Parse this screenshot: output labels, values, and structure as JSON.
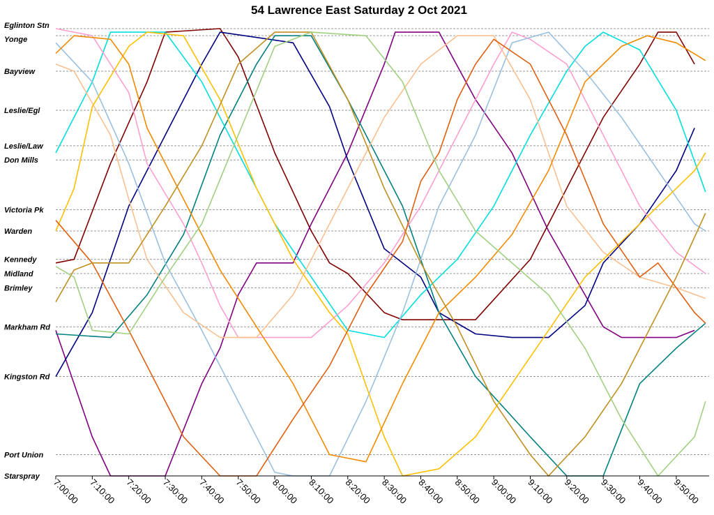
{
  "chart_data": {
    "type": "line",
    "title": "54 Lawrence East Saturday 2 Oct 2021",
    "xlabel": "",
    "ylabel": "",
    "x_unit": "time of day",
    "xlim": [
      "7:00:00",
      "9:59:00"
    ],
    "x_ticks": [
      "7:00:00",
      "7:10:00",
      "7:20:00",
      "7:30:00",
      "7:40:00",
      "7:50:00",
      "8:00:00",
      "8:10:00",
      "8:20:00",
      "8:30:00",
      "8:40:00",
      "8:50:00",
      "9:00:00",
      "9:10:00",
      "9:20:00",
      "9:30:00",
      "9:40:00",
      "9:50:00"
    ],
    "grid": "horizontal dashed lines at each stop",
    "stops": [
      {
        "name": "Eglinton Stn",
        "km": 0.0
      },
      {
        "name": "Yonge",
        "km": 0.2
      },
      {
        "name": "Bayview",
        "km": 1.2
      },
      {
        "name": "Leslie/Egl",
        "km": 2.3
      },
      {
        "name": "Leslie/Law",
        "km": 3.3
      },
      {
        "name": "Don Mills",
        "km": 3.7
      },
      {
        "name": "Victoria Pk",
        "km": 5.1
      },
      {
        "name": "Warden",
        "km": 5.7
      },
      {
        "name": "Kennedy",
        "km": 6.5
      },
      {
        "name": "Midland",
        "km": 6.9
      },
      {
        "name": "Brimley",
        "km": 7.3
      },
      {
        "name": "Markham Rd",
        "km": 8.4
      },
      {
        "name": "Kingston Rd",
        "km": 9.8
      },
      {
        "name": "Port Union",
        "km": 12.0
      },
      {
        "name": "Starspray",
        "km": 12.6
      }
    ],
    "ylim": [
      0,
      12.6
    ],
    "series": [
      {
        "color": "#800000",
        "points": [
          [
            "7:00",
            6.6
          ],
          [
            "7:05",
            6.5
          ],
          [
            "7:15",
            3.8
          ],
          [
            "7:25",
            1.5
          ],
          [
            "7:30",
            0.1
          ],
          [
            "7:45",
            0.0
          ],
          [
            "7:50",
            0.8
          ],
          [
            "8:00",
            3.5
          ],
          [
            "8:10",
            5.7
          ],
          [
            "8:15",
            6.6
          ],
          [
            "8:20",
            6.9
          ],
          [
            "8:30",
            8.0
          ],
          [
            "8:35",
            8.2
          ],
          [
            "8:55",
            8.2
          ],
          [
            "9:10",
            6.5
          ],
          [
            "9:20",
            4.5
          ],
          [
            "9:30",
            2.5
          ],
          [
            "9:40",
            1.0
          ],
          [
            "9:45",
            0.1
          ],
          [
            "9:50",
            0.1
          ],
          [
            "9:55",
            1.0
          ]
        ]
      },
      {
        "color": "#800080",
        "points": [
          [
            "7:00",
            8.5
          ],
          [
            "7:10",
            11.5
          ],
          [
            "7:15",
            12.6
          ],
          [
            "7:30",
            12.6
          ],
          [
            "7:40",
            10.0
          ],
          [
            "7:45",
            9.0
          ],
          [
            "7:50",
            7.5
          ],
          [
            "7:55",
            6.6
          ],
          [
            "8:05",
            6.6
          ],
          [
            "8:10",
            5.5
          ],
          [
            "8:20",
            3.5
          ],
          [
            "8:30",
            1.0
          ],
          [
            "8:33",
            0.1
          ],
          [
            "8:45",
            0.1
          ],
          [
            "8:55",
            2.0
          ],
          [
            "9:05",
            3.5
          ],
          [
            "9:15",
            5.7
          ],
          [
            "9:25",
            7.5
          ],
          [
            "9:30",
            8.4
          ],
          [
            "9:35",
            8.7
          ],
          [
            "9:50",
            8.7
          ],
          [
            "9:55",
            8.5
          ]
        ]
      },
      {
        "color": "#000080",
        "points": [
          [
            "7:00",
            9.8
          ],
          [
            "7:10",
            8.0
          ],
          [
            "7:20",
            5.0
          ],
          [
            "7:30",
            3.0
          ],
          [
            "7:40",
            1.0
          ],
          [
            "7:45",
            0.1
          ],
          [
            "8:05",
            0.4
          ],
          [
            "8:15",
            2.2
          ],
          [
            "8:20",
            3.7
          ],
          [
            "8:30",
            6.2
          ],
          [
            "8:35",
            6.6
          ],
          [
            "8:40",
            7.0
          ],
          [
            "8:45",
            8.0
          ],
          [
            "8:55",
            8.6
          ],
          [
            "9:05",
            8.7
          ],
          [
            "9:15",
            8.7
          ],
          [
            "9:25",
            7.8
          ],
          [
            "9:30",
            6.6
          ],
          [
            "9:40",
            5.5
          ],
          [
            "9:50",
            4.0
          ],
          [
            "9:55",
            2.8
          ]
        ]
      },
      {
        "color": "#008080",
        "points": [
          [
            "7:00",
            8.6
          ],
          [
            "7:15",
            8.7
          ],
          [
            "7:25",
            7.5
          ],
          [
            "7:35",
            5.8
          ],
          [
            "7:45",
            3.0
          ],
          [
            "7:55",
            1.0
          ],
          [
            "8:00",
            0.2
          ],
          [
            "8:10",
            0.2
          ],
          [
            "8:20",
            2.0
          ],
          [
            "8:35",
            5.0
          ],
          [
            "8:45",
            8.0
          ],
          [
            "8:55",
            9.8
          ],
          [
            "9:10",
            11.5
          ],
          [
            "9:20",
            12.6
          ],
          [
            "9:30",
            12.6
          ],
          [
            "9:40",
            10.0
          ],
          [
            "9:50",
            9.0
          ],
          [
            "9:58",
            8.3
          ]
        ]
      },
      {
        "color": "#00dede",
        "points": [
          [
            "7:00",
            3.5
          ],
          [
            "7:10",
            1.5
          ],
          [
            "7:15",
            0.1
          ],
          [
            "7:30",
            0.1
          ],
          [
            "7:40",
            1.5
          ],
          [
            "7:50",
            3.5
          ],
          [
            "8:00",
            5.5
          ],
          [
            "8:10",
            7.0
          ],
          [
            "8:20",
            8.5
          ],
          [
            "8:30",
            8.7
          ],
          [
            "8:40",
            7.5
          ],
          [
            "8:50",
            6.5
          ],
          [
            "9:00",
            5.0
          ],
          [
            "9:10",
            3.0
          ],
          [
            "9:20",
            1.2
          ],
          [
            "9:25",
            0.5
          ],
          [
            "9:30",
            0.1
          ],
          [
            "9:40",
            0.6
          ],
          [
            "9:50",
            2.3
          ],
          [
            "9:58",
            4.6
          ]
        ]
      },
      {
        "color": "#ff9fd0",
        "points": [
          [
            "7:00",
            0.0
          ],
          [
            "7:10",
            0.2
          ],
          [
            "7:20",
            1.8
          ],
          [
            "7:25",
            3.8
          ],
          [
            "7:35",
            5.5
          ],
          [
            "7:40",
            6.6
          ],
          [
            "7:45",
            7.8
          ],
          [
            "7:50",
            8.7
          ],
          [
            "8:10",
            8.7
          ],
          [
            "8:20",
            7.8
          ],
          [
            "8:30",
            6.6
          ],
          [
            "8:40",
            5.0
          ],
          [
            "8:50",
            3.0
          ],
          [
            "9:00",
            1.0
          ],
          [
            "9:05",
            0.1
          ],
          [
            "9:10",
            0.3
          ],
          [
            "9:20",
            1.0
          ],
          [
            "9:30",
            3.0
          ],
          [
            "9:40",
            5.0
          ],
          [
            "9:50",
            6.3
          ],
          [
            "9:58",
            6.9
          ]
        ]
      },
      {
        "color": "#9ac0e0",
        "points": [
          [
            "7:00",
            0.4
          ],
          [
            "7:10",
            1.5
          ],
          [
            "7:20",
            3.8
          ],
          [
            "7:30",
            6.6
          ],
          [
            "7:40",
            8.5
          ],
          [
            "7:50",
            10.5
          ],
          [
            "8:00",
            12.5
          ],
          [
            "8:05",
            12.6
          ],
          [
            "8:15",
            12.6
          ],
          [
            "8:25",
            10.5
          ],
          [
            "8:35",
            8.0
          ],
          [
            "8:45",
            5.0
          ],
          [
            "8:55",
            3.0
          ],
          [
            "9:05",
            0.4
          ],
          [
            "9:15",
            0.1
          ],
          [
            "9:25",
            1.2
          ],
          [
            "9:35",
            2.5
          ],
          [
            "9:45",
            4.0
          ],
          [
            "9:55",
            5.5
          ],
          [
            "9:58",
            5.7
          ]
        ]
      },
      {
        "color": "#fac090",
        "points": [
          [
            "7:00",
            1.0
          ],
          [
            "7:05",
            1.2
          ],
          [
            "7:15",
            3.0
          ],
          [
            "7:20",
            4.8
          ],
          [
            "7:25",
            6.5
          ],
          [
            "7:35",
            8.0
          ],
          [
            "7:45",
            8.7
          ],
          [
            "7:55",
            8.7
          ],
          [
            "8:05",
            7.5
          ],
          [
            "8:20",
            4.5
          ],
          [
            "8:30",
            2.5
          ],
          [
            "8:40",
            1.0
          ],
          [
            "8:50",
            0.2
          ],
          [
            "9:00",
            0.2
          ],
          [
            "9:10",
            2.0
          ],
          [
            "9:15",
            3.5
          ],
          [
            "9:20",
            5.0
          ],
          [
            "9:30",
            6.3
          ],
          [
            "9:40",
            7.0
          ],
          [
            "9:50",
            7.3
          ],
          [
            "9:58",
            7.6
          ]
        ]
      },
      {
        "color": "#ffc000",
        "points": [
          [
            "7:00",
            5.7
          ],
          [
            "7:05",
            4.5
          ],
          [
            "7:10",
            2.2
          ],
          [
            "7:20",
            0.5
          ],
          [
            "7:25",
            0.1
          ],
          [
            "7:35",
            0.2
          ],
          [
            "7:45",
            2.0
          ],
          [
            "7:55",
            4.5
          ],
          [
            "8:05",
            6.5
          ],
          [
            "8:15",
            8.0
          ],
          [
            "8:20",
            8.6
          ],
          [
            "8:30",
            11.5
          ],
          [
            "8:35",
            12.6
          ],
          [
            "8:45",
            12.4
          ],
          [
            "8:55",
            11.5
          ],
          [
            "9:05",
            10.0
          ],
          [
            "9:15",
            8.5
          ],
          [
            "9:25",
            7.0
          ],
          [
            "9:35",
            6.0
          ],
          [
            "9:45",
            5.0
          ],
          [
            "9:55",
            4.0
          ],
          [
            "9:58",
            3.5
          ]
        ]
      },
      {
        "color": "#f28a00",
        "points": [
          [
            "7:00",
            0.7
          ],
          [
            "7:05",
            0.2
          ],
          [
            "7:15",
            0.3
          ],
          [
            "7:20",
            1.0
          ],
          [
            "7:25",
            2.8
          ],
          [
            "7:35",
            4.8
          ],
          [
            "7:45",
            6.8
          ],
          [
            "7:55",
            8.4
          ],
          [
            "8:05",
            10.0
          ],
          [
            "8:15",
            12.0
          ],
          [
            "8:25",
            12.2
          ],
          [
            "8:35",
            10.0
          ],
          [
            "8:45",
            8.0
          ],
          [
            "8:55",
            7.0
          ],
          [
            "9:05",
            5.8
          ],
          [
            "9:15",
            4.0
          ],
          [
            "9:25",
            1.5
          ],
          [
            "9:35",
            0.5
          ],
          [
            "9:42",
            0.2
          ],
          [
            "9:50",
            0.4
          ],
          [
            "9:58",
            0.9
          ]
        ]
      },
      {
        "color": "#e06010",
        "points": [
          [
            "7:00",
            5.4
          ],
          [
            "7:10",
            6.6
          ],
          [
            "7:20",
            8.5
          ],
          [
            "7:25",
            9.5
          ],
          [
            "7:35",
            11.5
          ],
          [
            "7:45",
            12.6
          ],
          [
            "7:55",
            12.6
          ],
          [
            "8:05",
            11.0
          ],
          [
            "8:15",
            9.5
          ],
          [
            "8:25",
            7.5
          ],
          [
            "8:35",
            6.0
          ],
          [
            "8:40",
            4.3
          ],
          [
            "8:45",
            3.5
          ],
          [
            "8:50",
            2.0
          ],
          [
            "8:55",
            1.0
          ],
          [
            "9:00",
            0.3
          ],
          [
            "9:10",
            1.0
          ],
          [
            "9:20",
            3.0
          ],
          [
            "9:30",
            5.5
          ],
          [
            "9:40",
            7.0
          ],
          [
            "9:45",
            6.6
          ],
          [
            "9:55",
            8.0
          ],
          [
            "9:58",
            8.3
          ]
        ]
      },
      {
        "color": "#c09020",
        "points": [
          [
            "7:00",
            7.7
          ],
          [
            "7:05",
            6.8
          ],
          [
            "7:10",
            6.6
          ],
          [
            "7:20",
            6.6
          ],
          [
            "7:30",
            5.0
          ],
          [
            "7:40",
            3.3
          ],
          [
            "7:50",
            1.0
          ],
          [
            "8:00",
            0.1
          ],
          [
            "8:10",
            0.1
          ],
          [
            "8:20",
            2.0
          ],
          [
            "8:30",
            4.5
          ],
          [
            "8:40",
            6.6
          ],
          [
            "8:50",
            8.4
          ],
          [
            "9:00",
            10.5
          ],
          [
            "9:10",
            12.0
          ],
          [
            "9:15",
            12.6
          ],
          [
            "9:25",
            11.5
          ],
          [
            "9:35",
            10.0
          ],
          [
            "9:45",
            8.0
          ],
          [
            "9:50",
            7.0
          ],
          [
            "9:58",
            5.2
          ]
        ]
      },
      {
        "color": "#a0d080",
        "points": [
          [
            "7:00",
            6.7
          ],
          [
            "7:05",
            7.0
          ],
          [
            "7:10",
            8.5
          ],
          [
            "7:20",
            8.6
          ],
          [
            "7:30",
            7.0
          ],
          [
            "7:40",
            5.5
          ],
          [
            "7:50",
            3.0
          ],
          [
            "8:00",
            0.5
          ],
          [
            "8:10",
            0.1
          ],
          [
            "8:25",
            0.2
          ],
          [
            "8:35",
            1.5
          ],
          [
            "8:45",
            4.0
          ],
          [
            "8:55",
            5.7
          ],
          [
            "9:05",
            6.6
          ],
          [
            "9:15",
            7.5
          ],
          [
            "9:25",
            9.0
          ],
          [
            "9:35",
            11.0
          ],
          [
            "9:45",
            12.6
          ],
          [
            "9:55",
            11.5
          ],
          [
            "9:58",
            10.5
          ]
        ]
      }
    ]
  }
}
